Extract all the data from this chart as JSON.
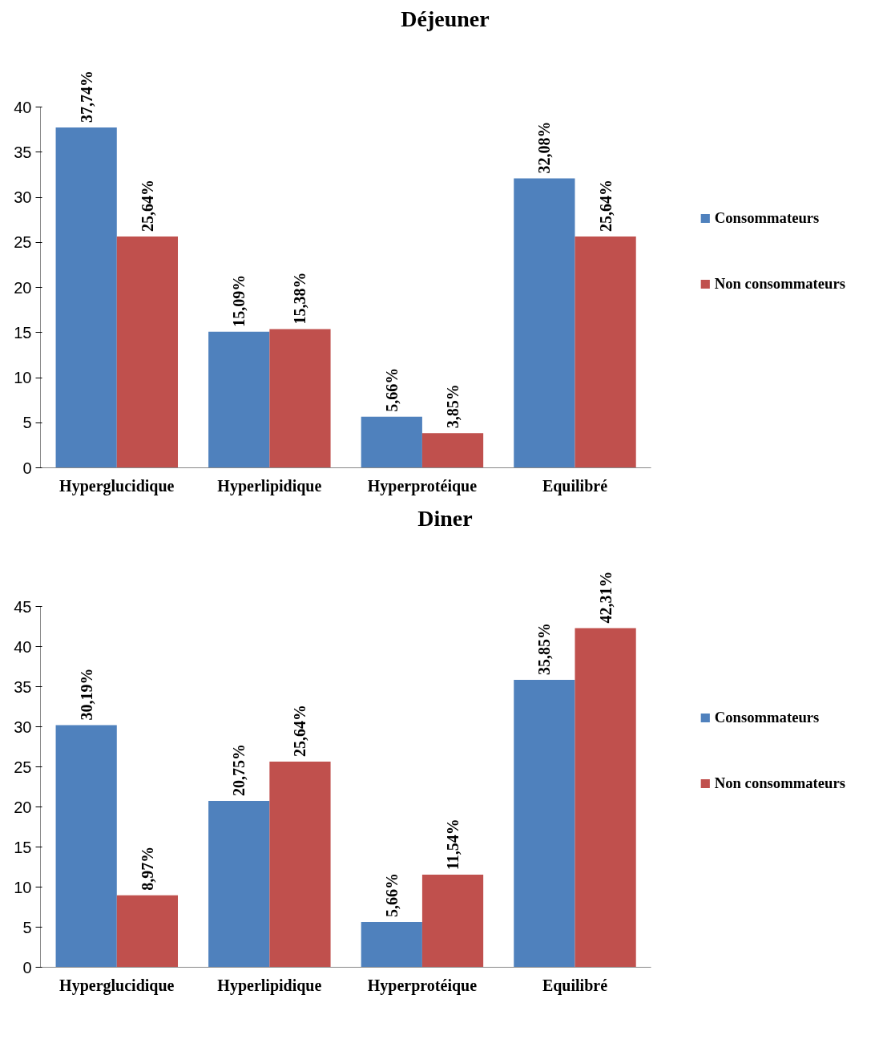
{
  "chart_data": [
    {
      "type": "bar",
      "title": "Déjeuner",
      "categories": [
        "Hyperglucidique",
        "Hyperlipidique",
        "Hyperprotéique",
        "Equilibré"
      ],
      "series": [
        {
          "name": "Consommateurs",
          "color": "#4f81bd",
          "values": [
            37.74,
            15.09,
            5.66,
            32.08
          ],
          "value_labels": [
            "37,74%",
            "15,09%",
            "5,66%",
            "32,08%"
          ]
        },
        {
          "name": "Non consommateurs",
          "color": "#c0504d",
          "values": [
            25.64,
            15.38,
            3.85,
            25.64
          ],
          "value_labels": [
            "25,64%",
            "15,38%",
            "3,85%",
            "25,64%"
          ]
        }
      ],
      "ylim": [
        0,
        40
      ],
      "yticks": [
        0,
        5,
        10,
        15,
        20,
        25,
        30,
        35,
        40
      ],
      "grid": false,
      "legend": "right"
    },
    {
      "type": "bar",
      "title": "Diner",
      "categories": [
        "Hyperglucidique",
        "Hyperlipidique",
        "Hyperprotéique",
        "Equilibré"
      ],
      "series": [
        {
          "name": "Consommateurs",
          "color": "#4f81bd",
          "values": [
            30.19,
            20.75,
            5.66,
            35.85
          ],
          "value_labels": [
            "30,19%",
            "20,75%",
            "5,66%",
            "35,85%"
          ]
        },
        {
          "name": "Non consommateurs",
          "color": "#c0504d",
          "values": [
            8.97,
            25.64,
            11.54,
            42.31
          ],
          "value_labels": [
            "8,97%",
            "25,64%",
            "11,54%",
            "42,31%"
          ]
        }
      ],
      "ylim": [
        0,
        45
      ],
      "yticks": [
        0,
        5,
        10,
        15,
        20,
        25,
        30,
        35,
        40,
        45
      ],
      "grid": false,
      "legend": "right"
    }
  ]
}
